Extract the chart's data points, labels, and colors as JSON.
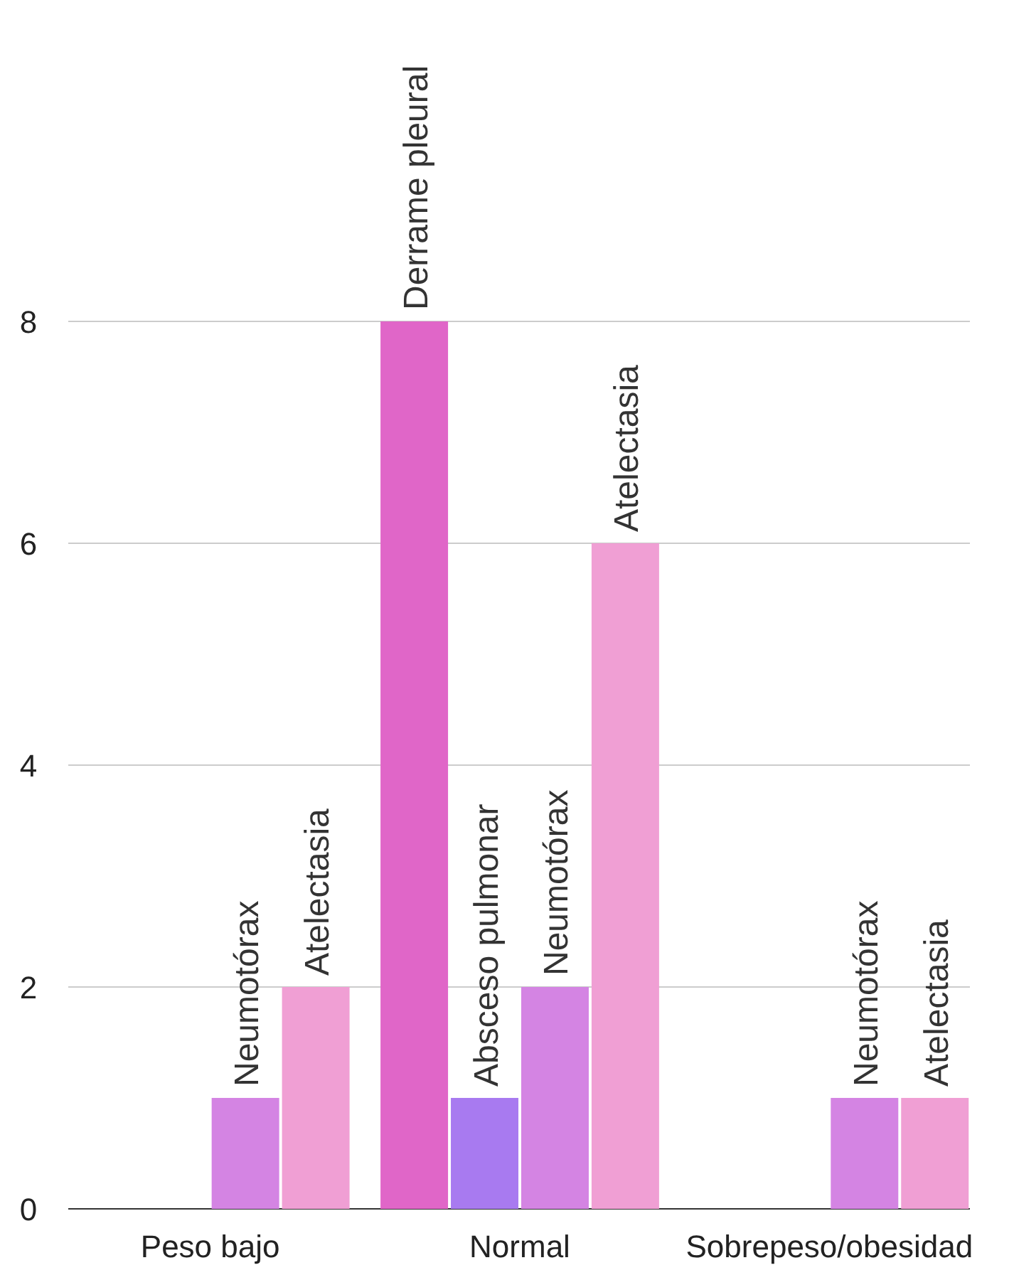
{
  "chart_data": {
    "type": "bar",
    "categories": [
      "Peso bajo",
      "Normal",
      "Sobrepeso/obesidad"
    ],
    "series": [
      {
        "name": "Derrame pleural",
        "color": "#e066c8",
        "values": [
          null,
          8,
          null
        ]
      },
      {
        "name": "Absceso pulmonar",
        "color": "#a87af0",
        "values": [
          null,
          1,
          null
        ]
      },
      {
        "name": "Neumotórax",
        "color": "#d484e3",
        "values": [
          1,
          2,
          1
        ]
      },
      {
        "name": "Atelectasia",
        "color": "#f09fd4",
        "values": [
          2,
          6,
          1
        ]
      }
    ],
    "ylim": [
      0,
      8
    ],
    "yticks": [
      0,
      2,
      4,
      6,
      8
    ],
    "grid": "y"
  }
}
